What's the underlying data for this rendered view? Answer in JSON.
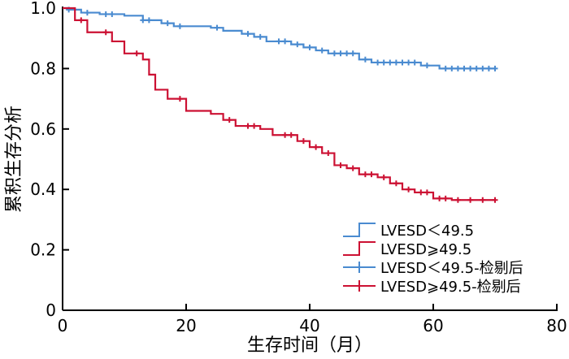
{
  "chart_data": {
    "type": "line",
    "title": "",
    "xlabel": "生存时间（月）",
    "ylabel": "累积生存分析",
    "xlim": [
      0,
      80
    ],
    "ylim": [
      0,
      1.0
    ],
    "xticks": [
      0,
      20,
      40,
      60,
      80
    ],
    "yticks": [
      0,
      0.2,
      0.4,
      0.6,
      0.8,
      1.0
    ],
    "ytick_labels": [
      "0",
      "0.2",
      "0.4",
      "0.6",
      "0.8",
      "1.0"
    ],
    "grid": false,
    "legend_position": "bottom-right",
    "legend": [
      "LVESD＜49.5",
      "LVESD⩾49.5",
      "LVESD＜49.5-检剔后",
      "LVESD⩾49.5-检剔后"
    ],
    "series": [
      {
        "name": "LVESD＜49.5",
        "color": "#4a8bd0",
        "step_times": [
          0,
          1,
          3,
          6,
          10,
          13,
          16,
          18,
          24,
          26,
          29,
          31,
          33,
          37,
          39,
          41,
          43,
          48,
          50,
          58,
          61,
          70
        ],
        "survival": [
          1.0,
          0.995,
          0.985,
          0.98,
          0.975,
          0.96,
          0.95,
          0.94,
          0.935,
          0.925,
          0.915,
          0.905,
          0.89,
          0.88,
          0.87,
          0.86,
          0.85,
          0.83,
          0.82,
          0.81,
          0.8,
          0.8
        ],
        "censored_name": "LVESD＜49.5-检剔后",
        "censored_times": [
          1,
          4,
          7,
          8,
          13,
          14,
          17,
          19,
          25,
          30,
          32,
          35,
          36,
          38,
          40,
          42,
          44,
          45,
          46,
          47,
          49,
          51,
          52,
          53,
          54,
          55,
          56,
          57,
          59,
          62,
          63,
          64,
          65,
          66,
          67,
          68,
          69,
          70
        ]
      },
      {
        "name": "LVESD⩾49.5",
        "color": "#cc1133",
        "step_times": [
          0,
          2,
          4,
          8,
          10,
          13,
          14,
          15,
          17,
          20,
          24,
          26,
          28,
          32,
          34,
          38,
          40,
          42,
          44,
          46,
          48,
          51,
          53,
          55,
          57,
          60,
          63,
          70
        ],
        "survival": [
          1.0,
          0.96,
          0.92,
          0.89,
          0.85,
          0.83,
          0.78,
          0.73,
          0.7,
          0.66,
          0.65,
          0.63,
          0.61,
          0.6,
          0.58,
          0.56,
          0.54,
          0.52,
          0.48,
          0.47,
          0.45,
          0.44,
          0.42,
          0.4,
          0.39,
          0.37,
          0.365,
          0.365
        ],
        "censored_name": "LVESD⩾49.5-检剔后",
        "censored_times": [
          3,
          7,
          12,
          19,
          27,
          30,
          31,
          36,
          37,
          39,
          41,
          43,
          45,
          47,
          49,
          50,
          52,
          54,
          56,
          58,
          59,
          61,
          62,
          64,
          66,
          68,
          70
        ]
      }
    ]
  }
}
